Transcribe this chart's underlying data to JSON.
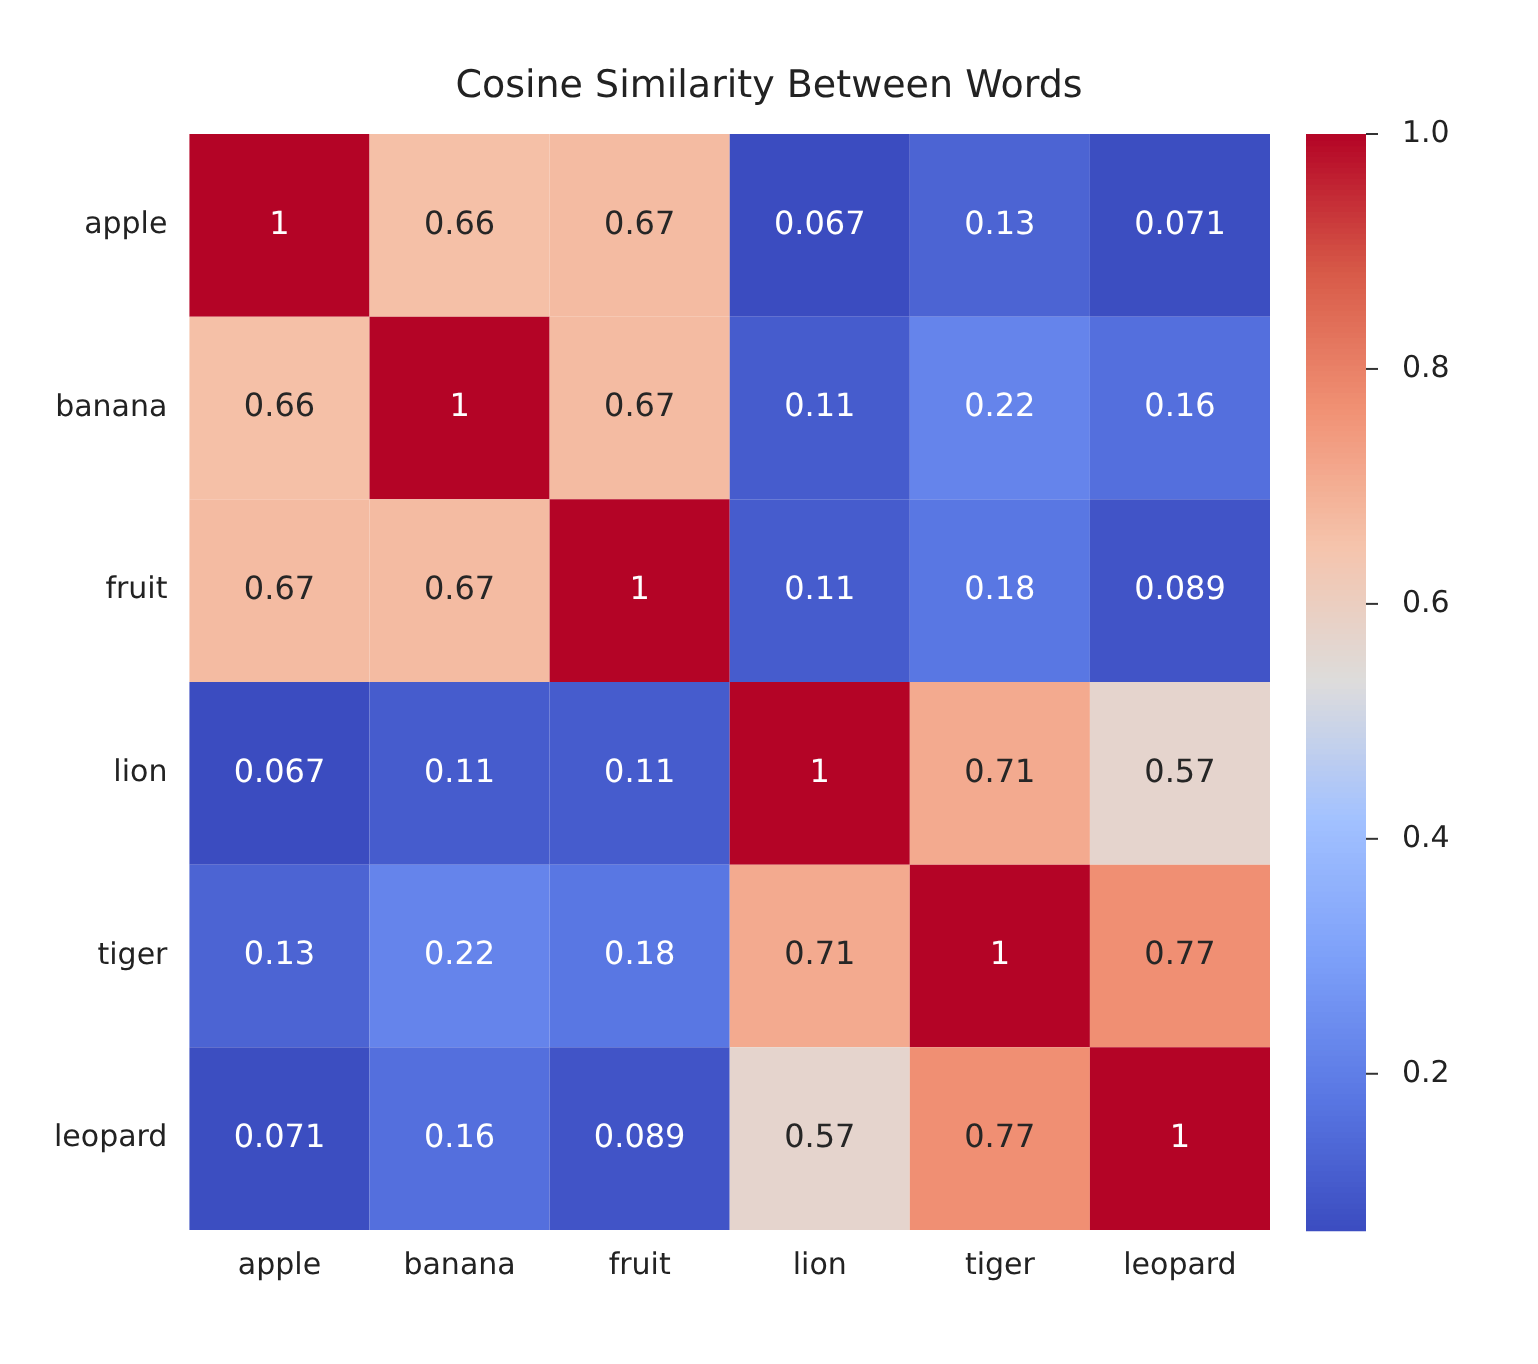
{
  "chart_data": {
    "type": "heatmap",
    "title": "Cosine Similarity Between Words",
    "categories": [
      "apple",
      "banana",
      "fruit",
      "lion",
      "tiger",
      "leopard"
    ],
    "y_categories": [
      "apple",
      "banana",
      "fruit",
      "lion",
      "tiger",
      "leopard"
    ],
    "cells": [
      [
        1,
        0.66,
        0.67,
        0.067,
        0.13,
        0.071
      ],
      [
        0.66,
        1,
        0.67,
        0.11,
        0.22,
        0.16
      ],
      [
        0.67,
        0.67,
        1,
        0.11,
        0.18,
        0.089
      ],
      [
        0.067,
        0.11,
        0.11,
        1,
        0.71,
        0.57
      ],
      [
        0.13,
        0.22,
        0.18,
        0.71,
        1,
        0.77
      ],
      [
        0.071,
        0.16,
        0.089,
        0.57,
        0.77,
        1
      ]
    ],
    "clim": [
      0.067,
      1
    ],
    "cticks": [
      0.2,
      0.4,
      0.6,
      0.8,
      {
        "value": 1,
        "label": "1.0"
      }
    ],
    "data_labels": true
  }
}
